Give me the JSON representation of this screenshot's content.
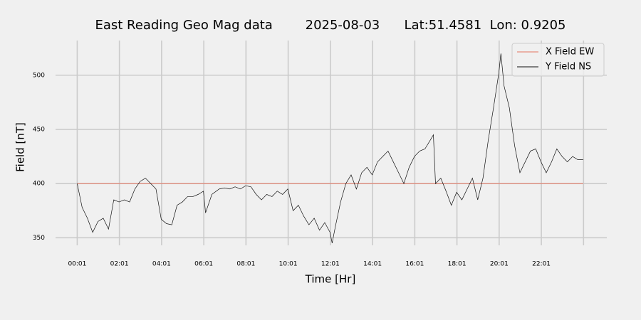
{
  "chart_data": {
    "type": "line",
    "title": "East Reading Geo Mag data        2025-08-03      Lat:51.4581  Lon: 0.9205",
    "xlabel": "Time  [Hr]",
    "ylabel": "Field  [nT]",
    "x": [
      0.0167,
      0.25,
      0.5,
      0.75,
      1.0,
      1.25,
      1.5,
      1.75,
      2.0,
      2.25,
      2.5,
      2.75,
      3.0,
      3.25,
      3.5,
      3.75,
      4.0,
      4.25,
      4.5,
      4.75,
      5.0,
      5.25,
      5.5,
      5.75,
      6.0,
      6.1,
      6.4,
      6.75,
      7.0,
      7.25,
      7.5,
      7.75,
      8.0,
      8.25,
      8.5,
      8.75,
      9.0,
      9.25,
      9.5,
      9.75,
      10.0,
      10.25,
      10.5,
      10.75,
      11.0,
      11.25,
      11.5,
      11.75,
      12.0,
      12.1,
      12.25,
      12.5,
      12.75,
      13.0,
      13.25,
      13.5,
      13.75,
      14.0,
      14.25,
      14.5,
      14.75,
      15.0,
      15.25,
      15.5,
      15.75,
      16.0,
      16.25,
      16.5,
      16.75,
      16.9,
      17.0,
      17.25,
      17.5,
      17.75,
      18.0,
      18.25,
      18.5,
      18.75,
      19.0,
      19.25,
      19.5,
      19.75,
      20.0,
      20.1,
      20.25,
      20.5,
      20.75,
      21.0,
      21.25,
      21.5,
      21.75,
      22.0,
      22.25,
      22.5,
      22.75,
      23.0,
      23.25,
      23.5,
      23.75,
      24.0
    ],
    "series": [
      {
        "name": "X Field EW",
        "color": "#e5735f",
        "values": [
          400,
          400,
          400,
          400,
          400,
          400,
          400,
          400,
          400,
          400,
          400,
          400,
          400,
          400,
          400,
          400,
          400,
          400,
          400,
          400,
          400,
          400,
          400,
          400,
          400,
          400,
          400,
          400,
          400,
          400,
          400,
          400,
          400,
          400,
          400,
          400,
          400,
          400,
          400,
          400,
          400,
          400,
          400,
          400,
          400,
          400,
          400,
          400,
          400,
          400,
          400,
          400,
          400,
          400,
          400,
          400,
          400,
          400,
          400,
          400,
          400,
          400,
          400,
          400,
          400,
          400,
          400,
          400,
          400,
          400,
          400,
          400,
          400,
          400,
          400,
          400,
          400,
          400,
          400,
          400,
          400,
          400,
          400,
          400,
          400,
          400,
          400,
          400,
          400,
          400,
          400,
          400,
          400,
          400,
          400,
          400,
          400,
          400,
          400,
          400
        ]
      },
      {
        "name": "Y Field NS",
        "color": "#111111",
        "values": [
          400,
          378,
          368,
          355,
          365,
          368,
          358,
          385,
          383,
          385,
          383,
          395,
          402,
          405,
          400,
          395,
          367,
          363,
          362,
          380,
          383,
          388,
          388,
          390,
          393,
          373,
          390,
          395,
          396,
          395,
          397,
          395,
          398,
          397,
          390,
          385,
          390,
          388,
          393,
          390,
          395,
          375,
          380,
          370,
          362,
          368,
          357,
          364,
          355,
          345,
          360,
          383,
          400,
          408,
          395,
          410,
          415,
          408,
          420,
          425,
          430,
          420,
          410,
          400,
          415,
          425,
          430,
          432,
          440,
          445,
          400,
          405,
          393,
          380,
          392,
          385,
          395,
          405,
          385,
          405,
          440,
          470,
          502,
          520,
          490,
          470,
          435,
          410,
          420,
          430,
          432,
          420,
          410,
          420,
          432,
          425,
          420,
          425,
          422,
          422
        ]
      }
    ],
    "xlim": [
      -1.01,
      25.12
    ],
    "xticks": [
      {
        "value": 0.0167,
        "label": "00:01"
      },
      {
        "value": 2.0167,
        "label": "02:01"
      },
      {
        "value": 4.0167,
        "label": "04:01"
      },
      {
        "value": 6.0167,
        "label": "06:01"
      },
      {
        "value": 8.0167,
        "label": "08:01"
      },
      {
        "value": 10.0167,
        "label": "10:01"
      },
      {
        "value": 12.0167,
        "label": "12:01"
      },
      {
        "value": 14.0167,
        "label": "14:01"
      },
      {
        "value": 16.0167,
        "label": "16:01"
      },
      {
        "value": 18.0167,
        "label": "18:01"
      },
      {
        "value": 20.0167,
        "label": "20:01"
      },
      {
        "value": 22.0167,
        "label": "22:01"
      },
      {
        "value": 24.0167,
        "label": null
      }
    ],
    "ylim": [
      343,
      532
    ],
    "yticks": [
      350,
      400,
      450,
      500
    ],
    "grid": true,
    "legend": "upper right"
  }
}
